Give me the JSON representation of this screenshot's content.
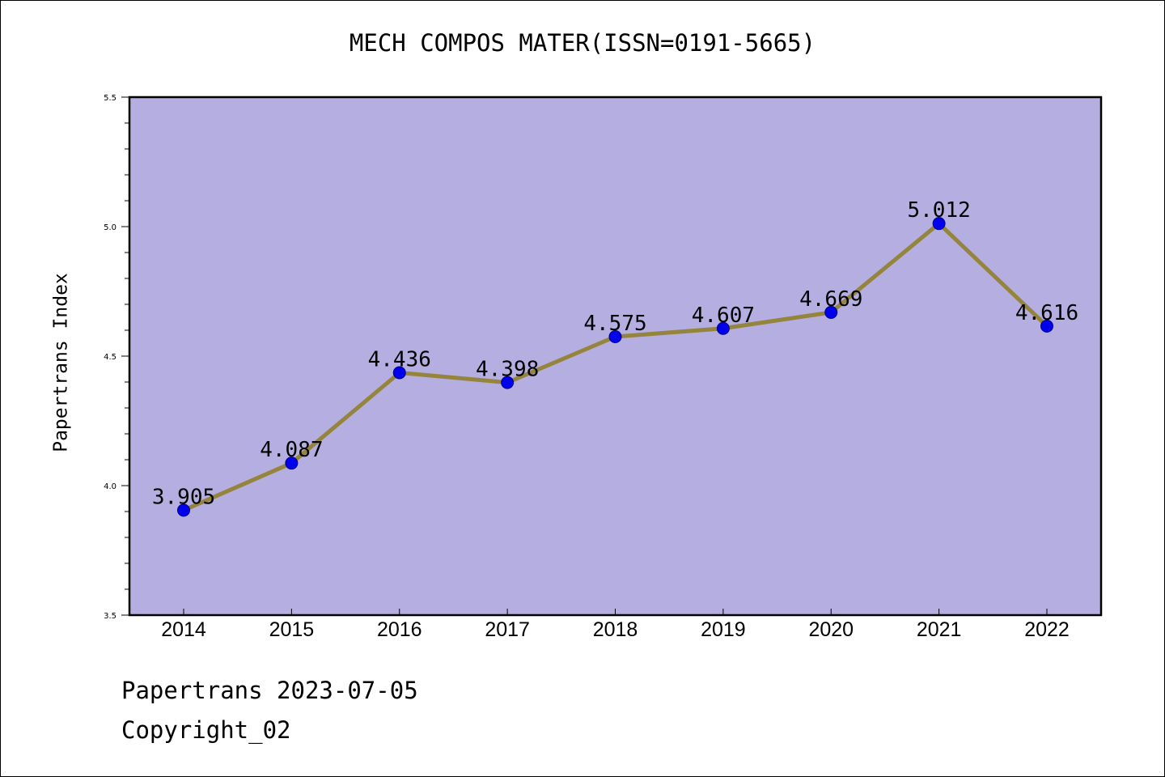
{
  "header": {
    "title": "MECH COMPOS MATER(ISSN=0191-5665)"
  },
  "footer": {
    "date_line": "Papertrans 2023-07-05",
    "copyright_line": "Copyright_02"
  },
  "colors": {
    "plot_background": "#b5aee1",
    "line": "#95843c",
    "marker": "#0000ee",
    "marker_edge": "#000080",
    "axis": "#000000"
  },
  "chart_data": {
    "type": "line",
    "title": "MECH COMPOS MATER(ISSN=0191-5665)",
    "xlabel": "",
    "ylabel": "Papertrans Index",
    "categories": [
      "2014",
      "2015",
      "2016",
      "2017",
      "2018",
      "2019",
      "2020",
      "2021",
      "2022"
    ],
    "series": [
      {
        "values": [
          3.905,
          4.087,
          4.436,
          4.398,
          4.575,
          4.607,
          4.669,
          5.012,
          4.616
        ],
        "labels": [
          "3.905",
          "4.087",
          "4.436",
          "4.398",
          "4.575",
          "4.607",
          "4.669",
          "5.012",
          "4.616"
        ]
      }
    ],
    "ylim": [
      3.5,
      5.5
    ],
    "yticks": [
      "3.5",
      "4.0",
      "4.5",
      "5.0",
      "5.5"
    ],
    "grid": false,
    "legend": "none"
  }
}
